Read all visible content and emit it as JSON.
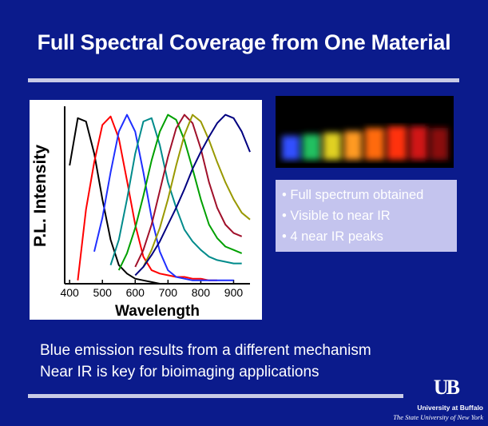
{
  "title": "Full Spectral Coverage from One Material",
  "chart_data": {
    "type": "line",
    "y_label": "P.L. Intensity",
    "x_label": "Wavelength",
    "xlim": [
      385,
      950
    ],
    "ylim": [
      0,
      1.05
    ],
    "xticks": [
      400,
      500,
      600,
      700,
      800,
      900
    ],
    "x": [
      400,
      425,
      450,
      475,
      500,
      525,
      550,
      575,
      600,
      625,
      650,
      675,
      700,
      725,
      750,
      775,
      800,
      825,
      850,
      875,
      900,
      925,
      950
    ],
    "series": [
      {
        "color": "#000000",
        "values": [
          0.7,
          0.98,
          0.96,
          0.77,
          0.5,
          0.26,
          0.11,
          0.06,
          0.03,
          0.02,
          0.01,
          0,
          0,
          null,
          null,
          null,
          null,
          null,
          null,
          null,
          null,
          null,
          null
        ]
      },
      {
        "color": "#ff0000",
        "values": [
          null,
          0.02,
          0.44,
          0.72,
          0.94,
          0.99,
          0.86,
          0.61,
          0.35,
          0.16,
          0.08,
          0.06,
          0.05,
          0.04,
          0.04,
          0.03,
          0.03,
          0.02,
          0.02,
          null,
          null,
          null,
          null
        ]
      },
      {
        "color": "#1f2fff",
        "values": [
          null,
          null,
          null,
          0.19,
          0.39,
          0.66,
          0.9,
          1,
          0.9,
          0.66,
          0.39,
          0.19,
          0.08,
          0.04,
          0.03,
          0.02,
          0.02,
          0.02,
          0.02,
          0.02,
          0.02,
          null,
          null
        ]
      },
      {
        "color": "#008b8b",
        "values": [
          null,
          null,
          null,
          null,
          null,
          0.11,
          0.26,
          0.5,
          0.77,
          0.96,
          0.98,
          0.82,
          0.6,
          0.45,
          0.32,
          0.25,
          0.2,
          0.16,
          0.14,
          0.13,
          0.12,
          0.12,
          null
        ]
      },
      {
        "color": "#00a000",
        "values": [
          null,
          null,
          null,
          null,
          null,
          null,
          0.08,
          0.18,
          0.33,
          0.52,
          0.73,
          0.9,
          1,
          0.97,
          0.85,
          0.68,
          0.5,
          0.35,
          0.27,
          0.22,
          0.2,
          0.18,
          null
        ]
      },
      {
        "color": "#a0102a",
        "values": [
          null,
          null,
          null,
          null,
          null,
          null,
          null,
          null,
          0.1,
          0.2,
          0.35,
          0.55,
          0.75,
          0.92,
          1,
          0.95,
          0.8,
          0.6,
          0.45,
          0.35,
          0.3,
          0.28,
          null
        ]
      },
      {
        "color": "#999900",
        "values": [
          null,
          null,
          null,
          null,
          null,
          null,
          null,
          null,
          null,
          0.1,
          0.2,
          0.33,
          0.5,
          0.7,
          0.88,
          1,
          0.96,
          0.85,
          0.72,
          0.6,
          0.5,
          0.42,
          0.38
        ]
      },
      {
        "color": "#000080",
        "values": [
          null,
          null,
          null,
          null,
          null,
          null,
          null,
          null,
          0.05,
          0.1,
          0.17,
          0.25,
          0.35,
          0.45,
          0.56,
          0.68,
          0.78,
          0.87,
          0.95,
          1,
          0.98,
          0.9,
          0.78
        ]
      }
    ]
  },
  "bullets": [
    "Full spectrum obtained",
    "Visible to near IR",
    "4 near IR peaks"
  ],
  "body": [
    "Blue emission results from a different mechanism",
    "Near IR is key for bioimaging applications"
  ],
  "logo": {
    "mark": "UB",
    "name": "University at Buffalo",
    "system": "The State University of New York"
  }
}
